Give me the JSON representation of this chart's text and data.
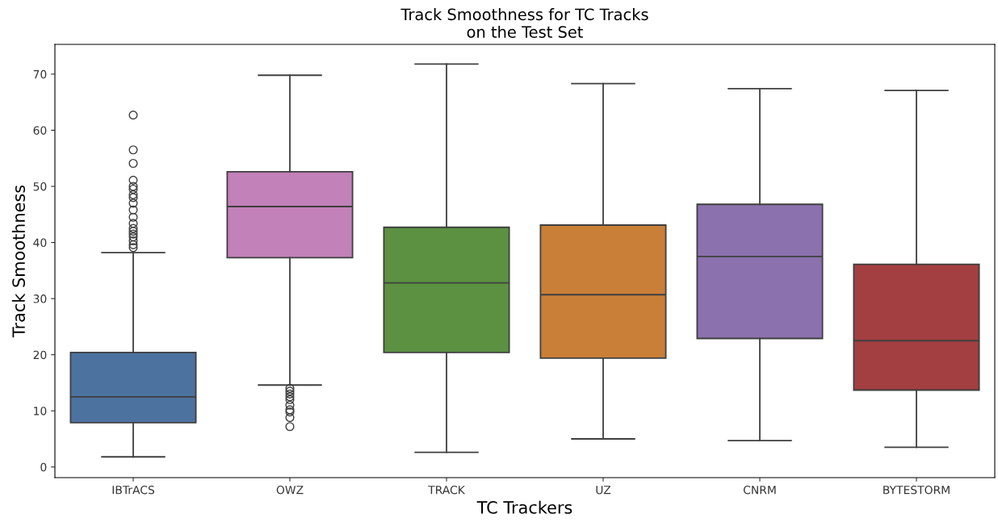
{
  "chart_data": {
    "type": "box",
    "title": "Track Smoothness for TC Tracks\non the Test Set",
    "xlabel": "TC Trackers",
    "ylabel": "Track Smoothness",
    "categories": [
      "IBTrACS",
      "OWZ",
      "TRACK",
      "UZ",
      "CNRM",
      "BYTESTORM"
    ],
    "colors": [
      "#4c72a0",
      "#c281b8",
      "#5b9141",
      "#c97f38",
      "#8b71ad",
      "#a33f40"
    ],
    "boxes": [
      {
        "low": 1.8,
        "q1": 7.9,
        "median": 12.5,
        "q3": 20.4,
        "high": 38.2,
        "outliers": [
          62.7,
          56.5,
          54.1,
          51.1,
          50.0,
          49.5,
          48.5,
          48.0,
          47.0,
          45.8,
          44.5,
          43.4,
          42.5,
          42.0,
          41.5,
          41.0,
          40.3,
          39.6,
          39.1
        ]
      },
      {
        "low": 14.6,
        "q1": 37.3,
        "median": 46.4,
        "q3": 52.6,
        "high": 69.8,
        "outliers": [
          14.0,
          13.5,
          13.0,
          12.5,
          12.0,
          11.0,
          10.2,
          9.8,
          8.8,
          7.2
        ]
      },
      {
        "low": 2.6,
        "q1": 20.4,
        "median": 32.8,
        "q3": 42.7,
        "high": 71.8
      },
      {
        "low": 5.0,
        "q1": 19.4,
        "median": 30.7,
        "q3": 43.1,
        "high": 68.3
      },
      {
        "low": 4.7,
        "q1": 22.9,
        "median": 37.5,
        "q3": 46.8,
        "high": 67.4
      },
      {
        "low": 3.5,
        "q1": 13.7,
        "median": 22.5,
        "q3": 36.1,
        "high": 67.1
      }
    ],
    "ylim": [
      -1.9,
      75.3
    ],
    "yticks": [
      0,
      10,
      20,
      30,
      40,
      50,
      60,
      70
    ],
    "grid": false,
    "legend": false
  }
}
